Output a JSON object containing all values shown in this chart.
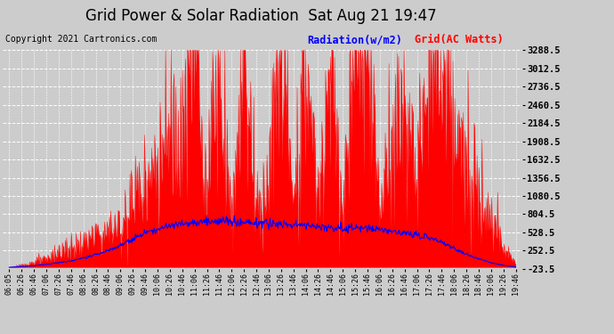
{
  "title": "Grid Power & Solar Radiation  Sat Aug 21 19:47",
  "copyright": "Copyright 2021 Cartronics.com",
  "legend_radiation": "Radiation(w/m2)",
  "legend_grid": "Grid(AC Watts)",
  "yticks": [
    -23.5,
    252.5,
    528.5,
    804.5,
    1080.5,
    1356.5,
    1632.5,
    1908.5,
    2184.5,
    2460.5,
    2736.5,
    3012.5,
    3288.5
  ],
  "ymin": -23.5,
  "ymax": 3288.5,
  "xtick_labels": [
    "06:05",
    "06:26",
    "06:46",
    "07:06",
    "07:26",
    "07:46",
    "08:06",
    "08:26",
    "08:46",
    "09:06",
    "09:26",
    "09:46",
    "10:06",
    "10:26",
    "10:46",
    "11:06",
    "11:26",
    "11:46",
    "12:06",
    "12:26",
    "12:46",
    "13:06",
    "13:26",
    "13:46",
    "14:06",
    "14:26",
    "14:46",
    "15:06",
    "15:26",
    "15:46",
    "16:06",
    "16:26",
    "16:46",
    "17:06",
    "17:26",
    "17:46",
    "18:06",
    "18:26",
    "18:46",
    "19:06",
    "19:26",
    "19:46"
  ],
  "bg_color": "#cccccc",
  "plot_bg_color": "#cccccc",
  "grid_color": "#ffffff",
  "title_color": "#000000",
  "copyright_color": "#000000",
  "radiation_color": "#0000ff",
  "grid_ac_color": "#ff0000",
  "shape_red": [
    0,
    30,
    80,
    120,
    200,
    280,
    350,
    420,
    500,
    600,
    900,
    1200,
    1500,
    1800,
    2100,
    3280,
    900,
    3100,
    600,
    3200,
    800,
    1200,
    3100,
    700,
    3000,
    900,
    2800,
    800,
    3100,
    2900,
    800,
    1800,
    2400,
    1100,
    2900,
    2800,
    1800,
    1500,
    1100,
    700,
    300,
    50
  ],
  "shape_blue": [
    0,
    10,
    25,
    45,
    70,
    100,
    140,
    190,
    250,
    330,
    430,
    520,
    580,
    630,
    660,
    680,
    690,
    700,
    690,
    680,
    670,
    660,
    650,
    640,
    630,
    620,
    610,
    600,
    590,
    580,
    570,
    550,
    520,
    490,
    450,
    380,
    290,
    200,
    130,
    70,
    30,
    5
  ],
  "title_fontsize": 12,
  "copyright_fontsize": 7,
  "legend_fontsize": 8.5,
  "tick_fontsize": 6,
  "ytick_fontsize": 7.5
}
